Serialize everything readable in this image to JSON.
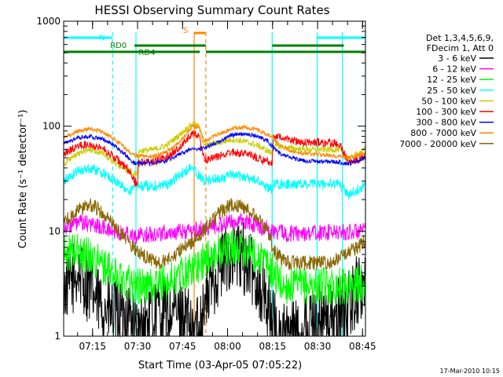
{
  "chart_data": {
    "type": "line",
    "title": "HESSI Observing Summary Count Rates",
    "xlabel": "Start Time (03-Apr-05 07:05:22)",
    "ylabel": "Count Rate (s⁻¹ detector⁻¹)",
    "y_scale": "log",
    "ylim": [
      1,
      1000
    ],
    "xlim_minutes": [
      0,
      100.6
    ],
    "x_ticks": [
      {
        "label": "07:15",
        "minute": 9.63
      },
      {
        "label": "07:30",
        "minute": 24.63
      },
      {
        "label": "07:45",
        "minute": 39.63
      },
      {
        "label": "08:00",
        "minute": 54.63
      },
      {
        "label": "08:15",
        "minute": 69.63
      },
      {
        "label": "08:30",
        "minute": 84.63
      },
      {
        "label": "08:45",
        "minute": 99.63
      }
    ],
    "y_ticks": [
      {
        "label": "1",
        "value": 1
      },
      {
        "label": "10",
        "value": 10
      },
      {
        "label": "100",
        "value": 100
      },
      {
        "label": "1000",
        "value": 1000
      }
    ],
    "legend": {
      "placement": "right",
      "header": [
        "Det 1,3,4,5,6,9,",
        "FDecim 1, Att 0"
      ],
      "entries": [
        {
          "label": "3 - 6 keV",
          "color": "#000000"
        },
        {
          "label": "6 - 12 keV",
          "color": "#ff00ff"
        },
        {
          "label": "12 - 25 keV",
          "color": "#00ff00"
        },
        {
          "label": "25 - 50 keV",
          "color": "#00ffff"
        },
        {
          "label": "50 - 100 keV",
          "color": "#cccc00"
        },
        {
          "label": "100 - 300 keV",
          "color": "#ff0000"
        },
        {
          "label": "300 - 800 keV",
          "color": "#0000ff"
        },
        {
          "label": "800 - 7000 keV",
          "color": "#ff8800"
        },
        {
          "label": "7000 - 20000 keV",
          "color": "#886600"
        }
      ]
    },
    "series": [
      {
        "name": "3 - 6 keV",
        "color": "#000000",
        "noise": 0.35,
        "points": [
          [
            0,
            2.8
          ],
          [
            2,
            3.3
          ],
          [
            5,
            4
          ],
          [
            8,
            3
          ],
          [
            11,
            2.2
          ],
          [
            14,
            1.8
          ],
          [
            16,
            1.6
          ],
          [
            22,
            1.6
          ],
          [
            24.5,
            1
          ],
          [
            28,
            1.4
          ],
          [
            30,
            1.7
          ],
          [
            34,
            1.7
          ],
          [
            38,
            1.6
          ],
          [
            41,
            1.5
          ],
          [
            42.5,
            1
          ],
          [
            45,
            1.3
          ],
          [
            47,
            2
          ],
          [
            50,
            3.5
          ],
          [
            54,
            5.5
          ],
          [
            57,
            6
          ],
          [
            60,
            5.5
          ],
          [
            63,
            4.2
          ],
          [
            66,
            2.8
          ],
          [
            69,
            1.7
          ],
          [
            70,
            1.3
          ],
          [
            72,
            1
          ],
          [
            78,
            1
          ],
          [
            82,
            1.3
          ],
          [
            85,
            1.5
          ],
          [
            88,
            1.4
          ],
          [
            91,
            1.6
          ],
          [
            94,
            1.8
          ],
          [
            96,
            2.2
          ],
          [
            98,
            2.8
          ],
          [
            100.6,
            3
          ]
        ]
      },
      {
        "name": "6 - 12 keV",
        "color": "#ff00ff",
        "noise": 0.08,
        "points": [
          [
            0,
            11
          ],
          [
            5,
            12
          ],
          [
            10,
            11.5
          ],
          [
            16,
            10
          ],
          [
            22,
            9.5
          ],
          [
            24.5,
            9
          ],
          [
            30,
            9.5
          ],
          [
            38,
            9.8
          ],
          [
            42,
            10
          ],
          [
            46,
            10.5
          ],
          [
            52,
            11.5
          ],
          [
            57,
            12.5
          ],
          [
            62,
            12
          ],
          [
            66,
            11
          ],
          [
            70,
            10
          ],
          [
            75,
            9.5
          ],
          [
            82,
            9.6
          ],
          [
            88,
            9.7
          ],
          [
            94,
            9.8
          ],
          [
            100.6,
            10
          ]
        ]
      },
      {
        "name": "12 - 25 keV",
        "color": "#00ff00",
        "noise": 0.18,
        "points": [
          [
            0,
            6
          ],
          [
            4,
            6.5
          ],
          [
            8,
            6
          ],
          [
            12,
            5
          ],
          [
            16,
            4
          ],
          [
            20,
            3.5
          ],
          [
            24.5,
            3
          ],
          [
            28,
            3
          ],
          [
            34,
            3.2
          ],
          [
            40,
            4
          ],
          [
            44,
            4.5
          ],
          [
            48,
            5.5
          ],
          [
            52,
            6.5
          ],
          [
            57,
            7
          ],
          [
            62,
            6.5
          ],
          [
            66,
            5.5
          ],
          [
            70,
            4
          ],
          [
            73,
            3
          ],
          [
            80,
            3
          ],
          [
            85,
            3
          ],
          [
            90,
            3
          ],
          [
            95,
            3
          ],
          [
            100.6,
            3.2
          ]
        ]
      },
      {
        "name": "25 - 50 keV",
        "color": "#00ffff",
        "noise": 0.05,
        "points": [
          [
            0,
            30
          ],
          [
            5,
            38
          ],
          [
            9,
            40
          ],
          [
            13,
            36
          ],
          [
            17,
            30
          ],
          [
            22,
            24
          ],
          [
            24.5,
            27
          ],
          [
            30,
            27
          ],
          [
            35,
            28
          ],
          [
            38,
            33
          ],
          [
            41,
            38
          ],
          [
            43,
            40
          ],
          [
            45,
            34
          ],
          [
            47,
            30
          ],
          [
            52,
            32
          ],
          [
            56,
            34
          ],
          [
            60,
            33
          ],
          [
            65,
            30
          ],
          [
            68,
            26
          ],
          [
            69.5,
            25
          ],
          [
            70,
            28
          ],
          [
            75,
            28
          ],
          [
            80,
            28
          ],
          [
            85,
            28
          ],
          [
            88,
            28
          ],
          [
            92,
            28
          ],
          [
            95,
            22
          ],
          [
            98,
            25
          ],
          [
            100.6,
            28
          ]
        ]
      },
      {
        "name": "50 - 100 keV",
        "color": "#cccc00",
        "noise": 0.03,
        "points": [
          [
            0,
            44
          ],
          [
            5,
            55
          ],
          [
            9,
            60
          ],
          [
            13,
            55
          ],
          [
            17,
            45
          ],
          [
            21,
            38
          ],
          [
            24.5,
            35
          ],
          [
            25,
            58
          ],
          [
            30,
            60
          ],
          [
            34,
            65
          ],
          [
            38,
            80
          ],
          [
            41,
            95
          ],
          [
            43,
            105
          ],
          [
            45,
            100
          ],
          [
            47,
            65
          ],
          [
            52,
            70
          ],
          [
            56,
            75
          ],
          [
            60,
            72
          ],
          [
            65,
            65
          ],
          [
            68,
            58
          ],
          [
            69.5,
            55
          ],
          [
            70,
            65
          ],
          [
            75,
            62
          ],
          [
            80,
            60
          ],
          [
            85,
            60
          ],
          [
            88,
            60
          ],
          [
            92,
            60
          ],
          [
            95,
            48
          ],
          [
            98,
            55
          ],
          [
            100.6,
            60
          ]
        ]
      },
      {
        "name": "100 - 300 keV",
        "color": "#ff0000",
        "noise": 0.04,
        "points": [
          [
            0,
            55
          ],
          [
            5,
            65
          ],
          [
            9,
            68
          ],
          [
            13,
            62
          ],
          [
            17,
            50
          ],
          [
            21,
            40
          ],
          [
            23,
            32
          ],
          [
            24.5,
            28
          ],
          [
            25,
            45
          ],
          [
            30,
            46
          ],
          [
            34,
            50
          ],
          [
            38,
            60
          ],
          [
            41,
            75
          ],
          [
            43,
            85
          ],
          [
            45,
            82
          ],
          [
            47,
            48
          ],
          [
            52,
            52
          ],
          [
            56,
            56
          ],
          [
            60,
            55
          ],
          [
            65,
            50
          ],
          [
            68,
            46
          ],
          [
            69.5,
            45
          ],
          [
            70,
            80
          ],
          [
            75,
            75
          ],
          [
            80,
            70
          ],
          [
            85,
            70
          ],
          [
            88,
            70
          ],
          [
            92,
            68
          ],
          [
            95,
            45
          ],
          [
            98,
            48
          ],
          [
            100.6,
            52
          ]
        ]
      },
      {
        "name": "300 - 800 keV",
        "color": "#0000ff",
        "noise": 0.02,
        "points": [
          [
            0,
            68
          ],
          [
            5,
            78
          ],
          [
            9,
            80
          ],
          [
            13,
            75
          ],
          [
            17,
            65
          ],
          [
            21,
            52
          ],
          [
            23,
            45
          ],
          [
            24.5,
            44
          ],
          [
            30,
            45
          ],
          [
            34,
            47
          ],
          [
            38,
            52
          ],
          [
            41,
            58
          ],
          [
            43,
            62
          ],
          [
            45,
            60
          ],
          [
            47,
            62
          ],
          [
            52,
            72
          ],
          [
            56,
            82
          ],
          [
            60,
            85
          ],
          [
            65,
            80
          ],
          [
            68,
            72
          ],
          [
            69.5,
            65
          ],
          [
            72,
            55
          ],
          [
            76,
            50
          ],
          [
            80,
            47
          ],
          [
            85,
            46
          ],
          [
            90,
            46
          ],
          [
            95,
            44
          ],
          [
            100.6,
            50
          ]
        ]
      },
      {
        "name": "800 - 7000 keV",
        "color": "#ff8800",
        "noise": 0.02,
        "points": [
          [
            0,
            78
          ],
          [
            5,
            90
          ],
          [
            9,
            95
          ],
          [
            13,
            88
          ],
          [
            17,
            75
          ],
          [
            21,
            60
          ],
          [
            23,
            54
          ],
          [
            24.5,
            52
          ],
          [
            30,
            52
          ],
          [
            34,
            56
          ],
          [
            38,
            68
          ],
          [
            41,
            85
          ],
          [
            43,
            100
          ],
          [
            45,
            98
          ],
          [
            47,
            72
          ],
          [
            52,
            85
          ],
          [
            56,
            95
          ],
          [
            60,
            98
          ],
          [
            65,
            92
          ],
          [
            68,
            82
          ],
          [
            69.5,
            80
          ],
          [
            72,
            65
          ],
          [
            76,
            58
          ],
          [
            80,
            55
          ],
          [
            85,
            54
          ],
          [
            90,
            52
          ],
          [
            95,
            50
          ],
          [
            100.6,
            55
          ]
        ]
      },
      {
        "name": "7000 - 20000 keV",
        "color": "#886600",
        "noise": 0.07,
        "points": [
          [
            0,
            12
          ],
          [
            5,
            16
          ],
          [
            9,
            18
          ],
          [
            13,
            15
          ],
          [
            17,
            11
          ],
          [
            21,
            8
          ],
          [
            24.5,
            6.5
          ],
          [
            28,
            5.5
          ],
          [
            32,
            5
          ],
          [
            36,
            5.5
          ],
          [
            40,
            7
          ],
          [
            44,
            8.5
          ],
          [
            48,
            11
          ],
          [
            52,
            15
          ],
          [
            56,
            18
          ],
          [
            60,
            17
          ],
          [
            64,
            14
          ],
          [
            68,
            10
          ],
          [
            70,
            6.5
          ],
          [
            74,
            5
          ],
          [
            80,
            5
          ],
          [
            85,
            5
          ],
          [
            90,
            5
          ],
          [
            94,
            6
          ],
          [
            98,
            7
          ],
          [
            100.6,
            8
          ]
        ]
      }
    ],
    "flags": [
      {
        "label": "N",
        "color": "#00ffff",
        "segments": [
          [
            0,
            16.3
          ],
          [
            84.5,
            100.6
          ]
        ]
      },
      {
        "label": "RD0",
        "color": "#008000",
        "segments": [
          [
            23.6,
            47.4
          ],
          [
            69.5,
            93.4
          ]
        ]
      },
      {
        "label": "RD4",
        "color": "#008000",
        "segments": [
          [
            0,
            45.4
          ],
          [
            47.4,
            69.5
          ],
          [
            69.5,
            93.4
          ],
          [
            93.4,
            100.6
          ]
        ]
      },
      {
        "label": "S",
        "color": "#ff8800",
        "segments": [
          [
            43.5,
            47.4
          ]
        ]
      }
    ],
    "markers": [
      {
        "minute": 16.3,
        "color": "#00ffff",
        "style": "dashed"
      },
      {
        "minute": 24.1,
        "color": "#00ffff",
        "style": "solid"
      },
      {
        "minute": 43.5,
        "color": "#ff8800",
        "style": "solid"
      },
      {
        "minute": 47.4,
        "color": "#ff8800",
        "style": "dashed"
      },
      {
        "minute": 69.5,
        "color": "#00ffff",
        "style": "solid"
      },
      {
        "minute": 84.5,
        "color": "#00ffff",
        "style": "solid"
      },
      {
        "minute": 92.9,
        "color": "#00ffff",
        "style": "solid"
      },
      {
        "minute": 100.6,
        "color": "#00ffff",
        "style": "dashed"
      }
    ],
    "footer": "17-Mar-2010 10:15"
  }
}
